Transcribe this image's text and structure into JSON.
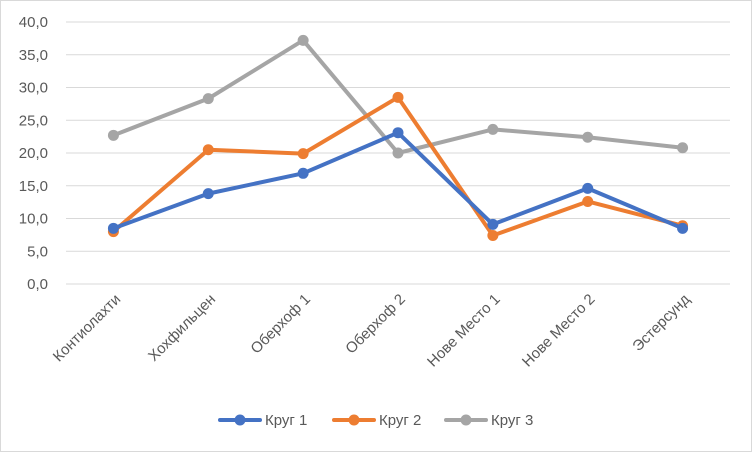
{
  "chart_data": {
    "type": "line",
    "title": "",
    "xlabel": "",
    "ylabel": "",
    "categories": [
      "Контиолахти",
      "Хохфильцен",
      "Оберхоф 1",
      "Оберхоф 2",
      "Нове Место 1",
      "Нове Место 2",
      "Эстерсунд"
    ],
    "y_ticks": [
      "0,0",
      "5,0",
      "10,0",
      "15,0",
      "20,0",
      "25,0",
      "30,0",
      "35,0",
      "40,0"
    ],
    "ylim": [
      0,
      40
    ],
    "grid": true,
    "legend_position": "bottom",
    "series": [
      {
        "name": "Круг 1",
        "color": "#4472c4",
        "values": [
          8.5,
          13.8,
          16.9,
          23.1,
          9.1,
          14.6,
          8.5
        ]
      },
      {
        "name": "Круг 2",
        "color": "#ed7d31",
        "values": [
          8.0,
          20.5,
          19.9,
          28.5,
          7.4,
          12.6,
          8.9
        ]
      },
      {
        "name": "Круг 3",
        "color": "#a5a5a5",
        "values": [
          22.7,
          28.3,
          37.2,
          20.0,
          23.6,
          22.4,
          20.8
        ]
      }
    ]
  }
}
